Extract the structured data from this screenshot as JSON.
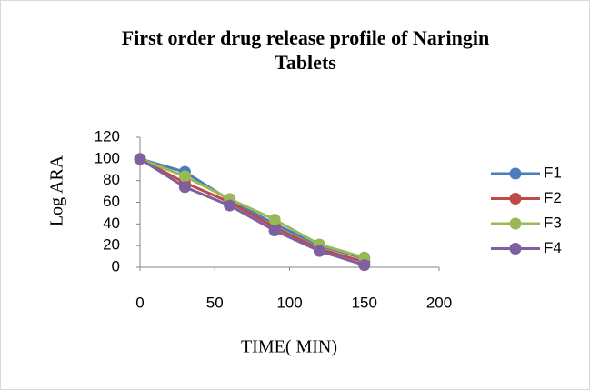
{
  "chart_data": {
    "type": "line",
    "title": "First order drug release profile of Naringin Tablets",
    "xlabel": "TIME( MIN)",
    "ylabel": "Log ARA",
    "x": [
      0,
      30,
      60,
      90,
      120,
      150
    ],
    "series": [
      {
        "name": "F1",
        "color": "#4a7ebb",
        "values": [
          100,
          88,
          62,
          40,
          20,
          8
        ]
      },
      {
        "name": "F2",
        "color": "#be4b48",
        "values": [
          100,
          78,
          60,
          37,
          17,
          5
        ]
      },
      {
        "name": "F3",
        "color": "#98b954",
        "values": [
          100,
          84,
          63,
          44,
          21,
          9
        ]
      },
      {
        "name": "F4",
        "color": "#7d60a0",
        "values": [
          100,
          74,
          57,
          34,
          15,
          2
        ]
      }
    ],
    "xlim": [
      0,
      200
    ],
    "xticks": [
      0,
      50,
      100,
      150,
      200
    ],
    "ylim": [
      0,
      120
    ],
    "yticks": [
      0,
      20,
      40,
      60,
      80,
      100,
      120
    ],
    "grid": false,
    "legend": "right"
  }
}
